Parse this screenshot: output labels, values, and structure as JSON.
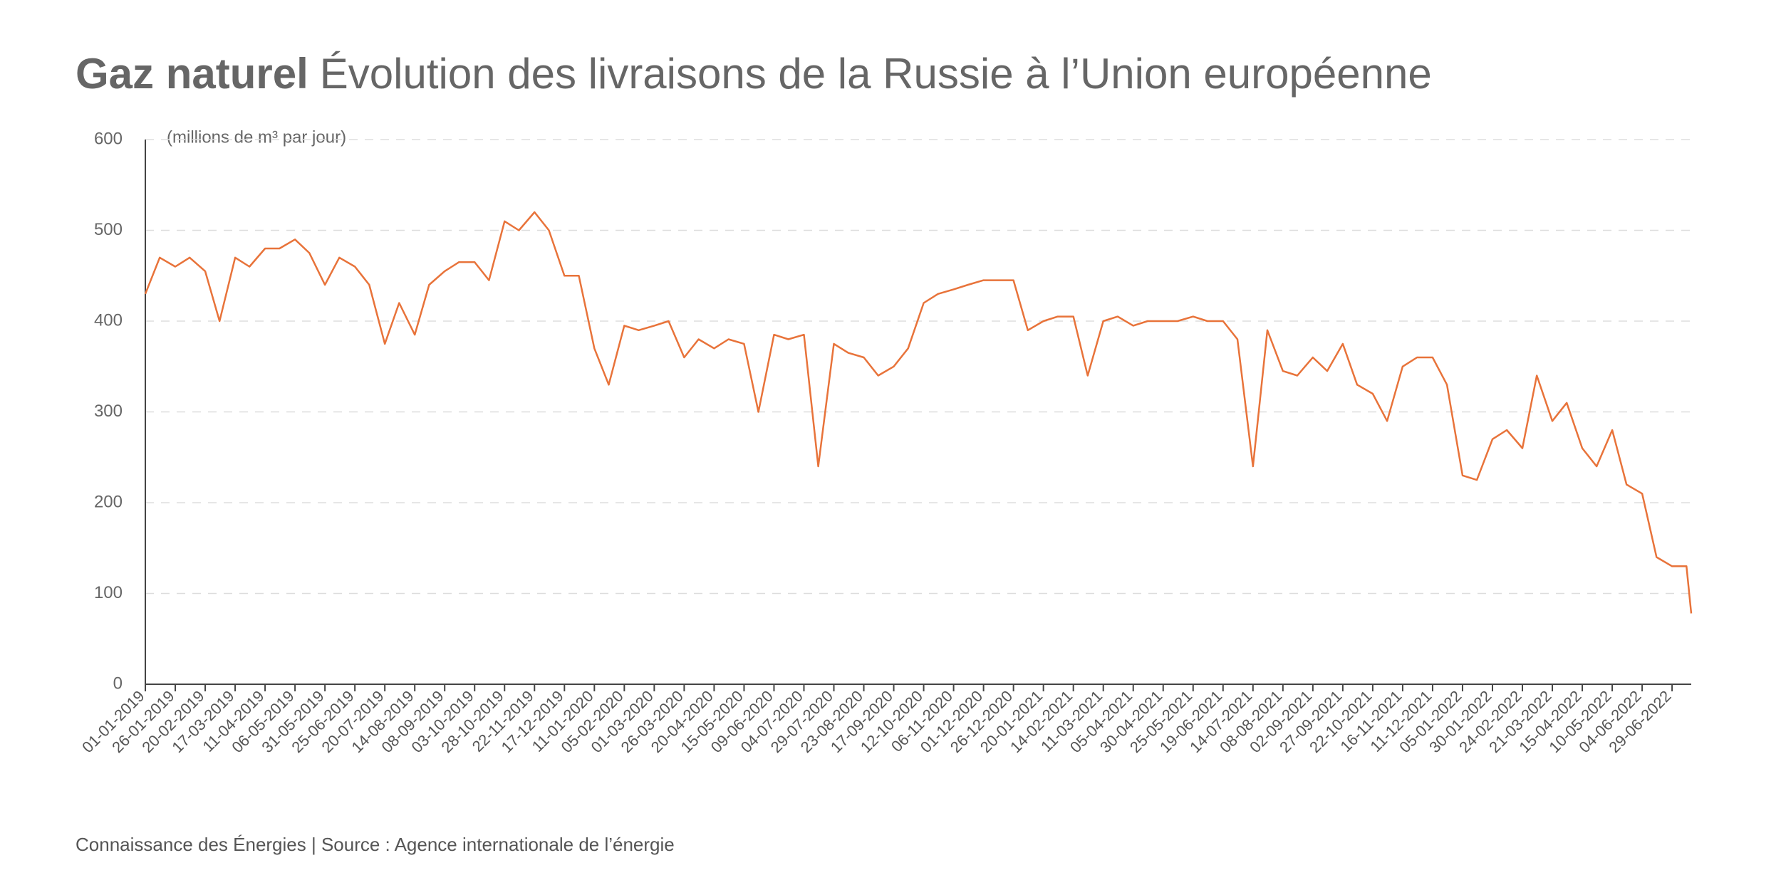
{
  "chart_data": {
    "type": "line",
    "title_bold": "Gaz naturel",
    "title": "Évolution des livraisons de la Russie à l’Union européenne",
    "y_label": "(millions de m³ par jour)",
    "source": "Connaissance des Énergies | Source : Agence internationale de l’énergie",
    "color": "#e8733a",
    "grid": true,
    "ylim": [
      0,
      600
    ],
    "yticks": [
      0,
      100,
      200,
      300,
      400,
      500,
      600
    ],
    "xlim": [
      "01-01-2019",
      "15-07-2022"
    ],
    "xticks": [
      "01-01-2019",
      "26-01-2019",
      "20-02-2019",
      "17-03-2019",
      "11-04-2019",
      "06-05-2019",
      "31-05-2019",
      "25-06-2019",
      "20-07-2019",
      "14-08-2019",
      "08-09-2019",
      "03-10-2019",
      "28-10-2019",
      "22-11-2019",
      "17-12-2019",
      "11-01-2020",
      "05-02-2020",
      "01-03-2020",
      "26-03-2020",
      "20-04-2020",
      "15-05-2020",
      "09-06-2020",
      "04-07-2020",
      "29-07-2020",
      "23-08-2020",
      "17-09-2020",
      "12-10-2020",
      "06-11-2020",
      "01-12-2020",
      "26-12-2020",
      "20-01-2021",
      "14-02-2021",
      "11-03-2021",
      "05-04-2021",
      "30-04-2021",
      "25-05-2021",
      "19-06-2021",
      "14-07-2021",
      "08-08-2021",
      "02-09-2021",
      "27-09-2021",
      "22-10-2021",
      "16-11-2021",
      "11-12-2021",
      "05-01-2022",
      "30-01-2022",
      "24-02-2022",
      "21-03-2022",
      "15-04-2022",
      "10-05-2022",
      "04-06-2022",
      "29-06-2022"
    ],
    "x": [
      "01-01-2019",
      "13-01-2019",
      "26-01-2019",
      "07-02-2019",
      "20-02-2019",
      "04-03-2019",
      "17-03-2019",
      "29-03-2019",
      "11-04-2019",
      "23-04-2019",
      "06-05-2019",
      "18-05-2019",
      "31-05-2019",
      "12-06-2019",
      "25-06-2019",
      "07-07-2019",
      "20-07-2019",
      "01-08-2019",
      "14-08-2019",
      "26-08-2019",
      "08-09-2019",
      "20-09-2019",
      "03-10-2019",
      "15-10-2019",
      "28-10-2019",
      "09-11-2019",
      "22-11-2019",
      "04-12-2019",
      "17-12-2019",
      "29-12-2019",
      "11-01-2020",
      "23-01-2020",
      "05-02-2020",
      "17-02-2020",
      "01-03-2020",
      "13-03-2020",
      "26-03-2020",
      "07-04-2020",
      "20-04-2020",
      "02-05-2020",
      "15-05-2020",
      "27-05-2020",
      "09-06-2020",
      "21-06-2020",
      "04-07-2020",
      "16-07-2020",
      "29-07-2020",
      "10-08-2020",
      "23-08-2020",
      "04-09-2020",
      "17-09-2020",
      "29-09-2020",
      "12-10-2020",
      "24-10-2020",
      "06-11-2020",
      "18-11-2020",
      "01-12-2020",
      "13-12-2020",
      "26-12-2020",
      "07-01-2021",
      "20-01-2021",
      "01-02-2021",
      "14-02-2021",
      "26-02-2021",
      "11-03-2021",
      "23-03-2021",
      "05-04-2021",
      "17-04-2021",
      "30-04-2021",
      "12-05-2021",
      "25-05-2021",
      "06-06-2021",
      "19-06-2021",
      "01-07-2021",
      "14-07-2021",
      "26-07-2021",
      "08-08-2021",
      "20-08-2021",
      "02-09-2021",
      "14-09-2021",
      "27-09-2021",
      "09-10-2021",
      "22-10-2021",
      "03-11-2021",
      "16-11-2021",
      "28-11-2021",
      "11-12-2021",
      "23-12-2021",
      "05-01-2022",
      "17-01-2022",
      "30-01-2022",
      "11-02-2022",
      "24-02-2022",
      "08-03-2022",
      "21-03-2022",
      "02-04-2022",
      "15-04-2022",
      "27-04-2022",
      "10-05-2022",
      "22-05-2022",
      "04-06-2022",
      "16-06-2022",
      "29-06-2022",
      "11-07-2022",
      "15-07-2022"
    ],
    "values": [
      430,
      470,
      460,
      470,
      455,
      400,
      470,
      460,
      480,
      480,
      490,
      475,
      440,
      470,
      460,
      440,
      375,
      420,
      385,
      440,
      455,
      465,
      465,
      445,
      510,
      500,
      520,
      500,
      450,
      450,
      370,
      330,
      395,
      390,
      395,
      400,
      360,
      380,
      370,
      380,
      375,
      300,
      385,
      380,
      385,
      240,
      375,
      365,
      360,
      340,
      350,
      370,
      420,
      430,
      435,
      440,
      445,
      445,
      445,
      390,
      400,
      405,
      405,
      340,
      400,
      405,
      395,
      400,
      400,
      400,
      405,
      400,
      400,
      380,
      240,
      390,
      345,
      340,
      360,
      345,
      375,
      330,
      320,
      290,
      350,
      360,
      360,
      330,
      230,
      225,
      270,
      280,
      260,
      340,
      290,
      310,
      260,
      240,
      280,
      220,
      210,
      140,
      130,
      130,
      78
    ]
  }
}
